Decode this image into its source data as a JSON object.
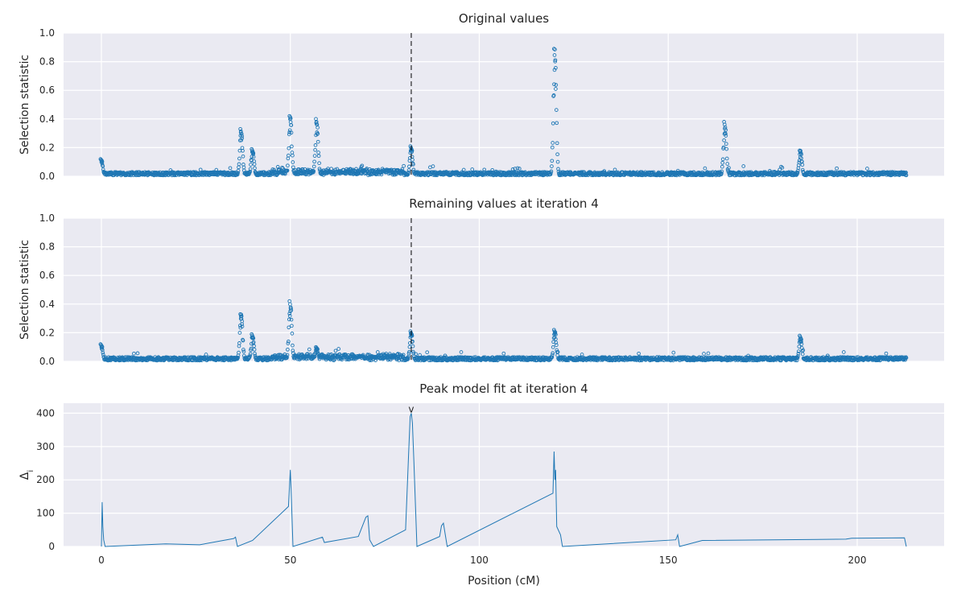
{
  "chart_data": [
    {
      "type": "scatter",
      "title": "Original values",
      "ylabel": "Selection statistic",
      "xlim": [
        -10,
        223
      ],
      "ylim": [
        0,
        1.0
      ],
      "yticks": [
        0.0,
        0.2,
        0.4,
        0.6,
        0.8,
        1.0
      ],
      "ytick_labels": [
        "0.0",
        "0.2",
        "0.4",
        "0.6",
        "0.8",
        "1.0"
      ],
      "xticks": [
        0,
        50,
        100,
        150,
        200
      ],
      "show_xticklabels": false,
      "grid": true,
      "vline_x": 82,
      "x_range": [
        0,
        213
      ],
      "baseline": 0.02,
      "peaks": [
        {
          "x": 0,
          "y": 0.12
        },
        {
          "x": 37,
          "y": 0.33
        },
        {
          "x": 40,
          "y": 0.19
        },
        {
          "x": 50,
          "y": 0.42
        },
        {
          "x": 57,
          "y": 0.4
        },
        {
          "x": 82,
          "y": 0.21
        },
        {
          "x": 120,
          "y": 0.89
        },
        {
          "x": 165,
          "y": 0.38
        },
        {
          "x": 185,
          "y": 0.18
        }
      ]
    },
    {
      "type": "scatter",
      "title": "Remaining values at iteration 4",
      "ylabel": "Selection statistic",
      "xlim": [
        -10,
        223
      ],
      "ylim": [
        0,
        1.0
      ],
      "yticks": [
        0.0,
        0.2,
        0.4,
        0.6,
        0.8,
        1.0
      ],
      "ytick_labels": [
        "0.0",
        "0.2",
        "0.4",
        "0.6",
        "0.8",
        "1.0"
      ],
      "xticks": [
        0,
        50,
        100,
        150,
        200
      ],
      "show_xticklabels": false,
      "grid": true,
      "vline_x": 82,
      "x_range": [
        0,
        213
      ],
      "baseline": 0.02,
      "peaks": [
        {
          "x": 0,
          "y": 0.12
        },
        {
          "x": 37,
          "y": 0.33
        },
        {
          "x": 40,
          "y": 0.19
        },
        {
          "x": 50,
          "y": 0.42
        },
        {
          "x": 57,
          "y": 0.1
        },
        {
          "x": 82,
          "y": 0.21
        },
        {
          "x": 120,
          "y": 0.22
        },
        {
          "x": 185,
          "y": 0.18
        }
      ]
    },
    {
      "type": "line",
      "title": "Peak model fit at iteration 4",
      "ylabel": "Δ",
      "ylabel_sub": "i",
      "xlabel": "Position (cM)",
      "xlim": [
        -10,
        223
      ],
      "ylim": [
        0,
        430
      ],
      "yticks": [
        0,
        100,
        200,
        300,
        400
      ],
      "ytick_labels": [
        "0",
        "100",
        "200",
        "300",
        "400"
      ],
      "xticks": [
        0,
        50,
        100,
        150,
        200
      ],
      "xtick_labels": [
        "0",
        "50",
        "100",
        "150",
        "200"
      ],
      "grid": true,
      "marker": {
        "x": 82,
        "y": 400,
        "text": "v"
      },
      "x": [
        0,
        0.2,
        0.4,
        0.6,
        1,
        17,
        26,
        35,
        35.5,
        36,
        40,
        49.5,
        50,
        50.3,
        50.7,
        58.5,
        59,
        68,
        70,
        70.5,
        71,
        72,
        80.5,
        81.3,
        81.7,
        82,
        82.3,
        82.7,
        83.5,
        89.5,
        90,
        90.5,
        91.5,
        119.5,
        119.8,
        120,
        120.2,
        120.5,
        121.5,
        122,
        152,
        152.5,
        153,
        159,
        197,
        198.5,
        212.5,
        213
      ],
      "values": [
        0,
        133,
        60,
        20,
        0,
        8,
        5,
        24,
        28,
        0,
        18,
        120,
        230,
        140,
        0,
        28,
        12,
        30,
        88,
        92,
        20,
        0,
        50,
        280,
        390,
        400,
        370,
        250,
        0,
        30,
        62,
        70,
        0,
        160,
        285,
        200,
        230,
        60,
        35,
        0,
        20,
        35,
        0,
        18,
        22,
        25,
        26,
        0
      ]
    }
  ],
  "colors": {
    "points": "#1f77b4",
    "background": "#eaeaf2",
    "grid": "#ffffff"
  }
}
